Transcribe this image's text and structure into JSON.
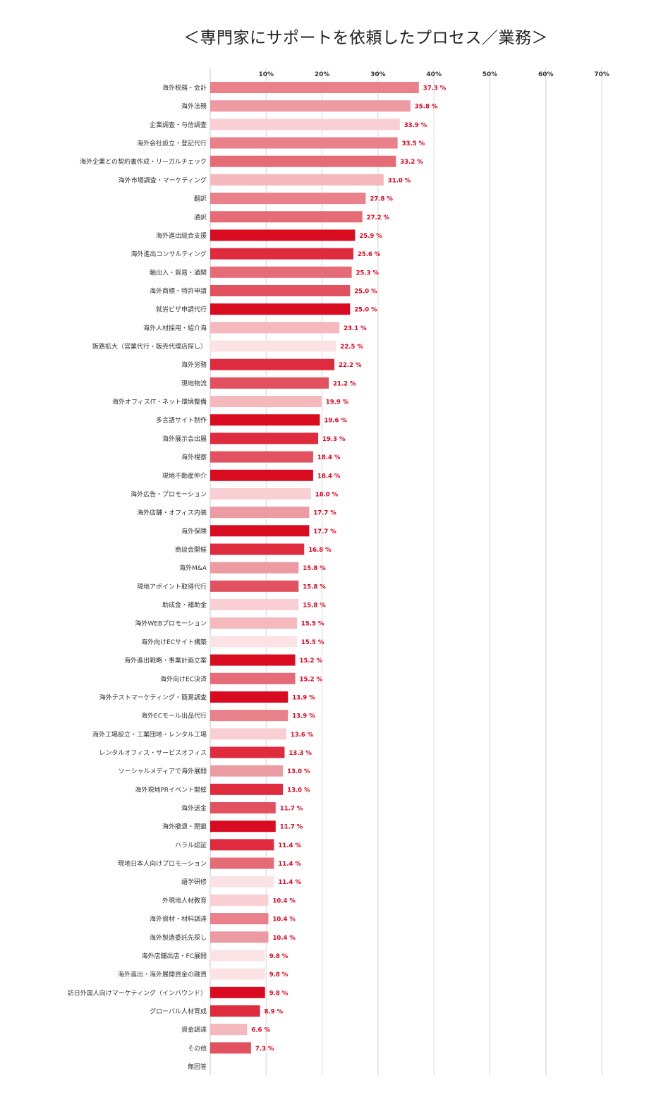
{
  "chart_data": {
    "type": "bar",
    "orientation": "horizontal",
    "title": "＜専門家にサポートを依頼したプロセス／業務＞",
    "xlabel": "",
    "ylabel": "",
    "xlim": [
      0,
      70
    ],
    "ticks": [
      {
        "value": 10,
        "label": "10%"
      },
      {
        "value": 20,
        "label": "20%"
      },
      {
        "value": 30,
        "label": "30%"
      },
      {
        "value": 40,
        "label": "40%"
      },
      {
        "value": 50,
        "label": "50%"
      },
      {
        "value": 60,
        "label": "60%"
      },
      {
        "value": 70,
        "label": "70%"
      }
    ],
    "value_suffix": " %",
    "grid": true,
    "categories": [
      "海外税務・会計",
      "海外法務",
      "企業調査・与信調査",
      "海外会社設立・登記代行",
      "海外企業との契約書作成・リーガルチェック",
      "海外市場調査・マーケティング",
      "翻訳",
      "通訳",
      "海外進出総合支援",
      "海外進出コンサルティング",
      "輸出入・貿易・通関",
      "海外商標・特許申請",
      "就労ビザ申請代行",
      "海外人材採用・紹介海",
      "販路拡大（営業代行・販売代理店探し）",
      "海外労務",
      "現地物流",
      "海外オフィスIT・ネット環境整備",
      "多言語サイト制作",
      "海外展示会出展",
      "海外視察",
      "現地不動産仲介",
      "海外広告・プロモーション",
      "海外店舗・オフィス内装",
      "海外保険",
      "商談会開催",
      "海外M&A",
      "現地アポイント取得代行",
      "助成金・補助金",
      "海外WEBプロモーション",
      "海外向けECサイト構築",
      "海外進出戦略・事業計画立案",
      "海外向けEC決済",
      "海外テストマーケティング・簡易調査",
      "海外ECモール出品代行",
      "海外工場設立・工業団地・レンタル工場",
      "レンタルオフィス・サービスオフィス",
      "ソーシャルメディアで海外展開",
      "海外現地PRイベント開催",
      "海外送金",
      "海外撤退・閉鎖",
      "ハラル認証",
      "現地日本人向けプロモーション",
      "語学研修",
      "外現地人材教育",
      "海外資材・材料調達",
      "海外製造委託先探し",
      "海外店舗出店・FC展開",
      "海外進出・海外展開資金の融資",
      "訪日外国人向けマーケティング（インバウンド）",
      "グローバル人材育成",
      "資金調達",
      "その他",
      "無回答"
    ],
    "values": [
      37.3,
      35.8,
      33.9,
      33.5,
      33.2,
      31.0,
      27.8,
      27.2,
      25.9,
      25.6,
      25.3,
      25.0,
      25.0,
      23.1,
      22.5,
      22.2,
      21.2,
      19.9,
      19.6,
      19.3,
      18.4,
      18.4,
      18.0,
      17.7,
      17.7,
      16.8,
      15.8,
      15.8,
      15.8,
      15.5,
      15.5,
      15.2,
      15.2,
      13.9,
      13.9,
      13.6,
      13.3,
      13.0,
      13.0,
      11.7,
      11.7,
      11.4,
      11.4,
      11.4,
      10.4,
      10.4,
      10.4,
      9.8,
      9.8,
      9.8,
      8.9,
      6.6,
      7.3,
      null
    ],
    "value_labels": [
      "37.3",
      "35.8",
      "33.9",
      "33.5",
      "33.2",
      "31.0",
      "27.8",
      "27.2",
      "25.9",
      "25.6",
      "25.3",
      "25.0",
      "25.0",
      "23.1",
      "22.5",
      "22.2",
      "21.2",
      "19.9",
      "19.6",
      "19.3",
      "18.4",
      "18.4",
      "18.0",
      "17.7",
      "17.7",
      "16.8",
      "15.8",
      "15.8",
      "15.8",
      "15.5",
      "15.5",
      "15.2",
      "15.2",
      "13.9",
      "13.9",
      "13.6",
      "13.3",
      "13.0",
      "13.0",
      "11.7",
      "11.7",
      "11.4",
      "11.4",
      "11.4",
      "10.4",
      "10.4",
      "10.4",
      "9.8",
      "9.8",
      "9.8",
      "8.9",
      "6.6",
      "7.3",
      null
    ],
    "bar_colors": [
      "#e9808a",
      "#ec9ba2",
      "#f9cfd4",
      "#e9808a",
      "#e56b77",
      "#f4b8bd",
      "#e9808a",
      "#e56b77",
      "#d90b20",
      "#de2c3e",
      "#e56b77",
      "#e15160",
      "#d90b20",
      "#f4b8bd",
      "#fbe3e5",
      "#de2c3e",
      "#e15160",
      "#f4b8bd",
      "#d90b20",
      "#de2c3e",
      "#e15160",
      "#d90b20",
      "#f9cfd4",
      "#ec9ba2",
      "#d90b20",
      "#de2c3e",
      "#ec9ba2",
      "#e15160",
      "#f9cfd4",
      "#f4b8bd",
      "#fbe3e5",
      "#d90b20",
      "#e56b77",
      "#d90b20",
      "#e9808a",
      "#f9cfd4",
      "#de2c3e",
      "#ec9ba2",
      "#de2c3e",
      "#e15160",
      "#d90b20",
      "#de2c3e",
      "#e56b77",
      "#fbe3e5",
      "#f9cfd4",
      "#e9808a",
      "#ec9ba2",
      "#fbe3e5",
      "#fbe3e5",
      "#d90b20",
      "#de2c3e",
      "#f4b8bd",
      "#e15160",
      "#ffffff"
    ]
  }
}
